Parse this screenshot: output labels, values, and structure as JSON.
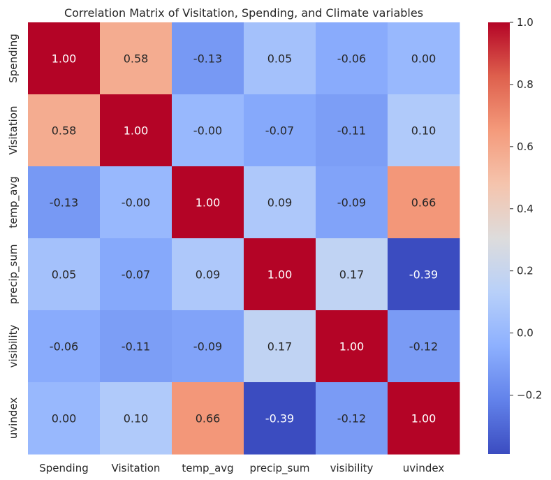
{
  "chart_data": {
    "type": "heatmap",
    "title": "Correlation Matrix of Visitation, Spending, and Climate variables",
    "xlabel": "",
    "ylabel": "",
    "x_labels": [
      "Spending",
      "Visitation",
      "temp_avg",
      "precip_sum",
      "visibility",
      "uvindex"
    ],
    "y_labels": [
      "Spending",
      "Visitation",
      "temp_avg",
      "precip_sum",
      "visibility",
      "uvindex"
    ],
    "values": [
      [
        1.0,
        0.58,
        -0.13,
        0.05,
        -0.06,
        0.0
      ],
      [
        0.58,
        1.0,
        -0.0,
        -0.07,
        -0.11,
        0.1
      ],
      [
        -0.13,
        -0.0,
        1.0,
        0.09,
        -0.09,
        0.66
      ],
      [
        0.05,
        -0.07,
        0.09,
        1.0,
        0.17,
        -0.39
      ],
      [
        -0.06,
        -0.11,
        -0.09,
        0.17,
        1.0,
        -0.12
      ],
      [
        0.0,
        0.1,
        0.66,
        -0.39,
        -0.12,
        1.0
      ]
    ],
    "annotations": [
      [
        "1.00",
        "0.58",
        "-0.13",
        "0.05",
        "-0.06",
        "0.00"
      ],
      [
        "0.58",
        "1.00",
        "-0.00",
        "-0.07",
        "-0.11",
        "0.10"
      ],
      [
        "-0.13",
        "-0.00",
        "1.00",
        "0.09",
        "-0.09",
        "0.66"
      ],
      [
        "0.05",
        "-0.07",
        "0.09",
        "1.00",
        "0.17",
        "-0.39"
      ],
      [
        "-0.06",
        "-0.11",
        "-0.09",
        "0.17",
        "1.00",
        "-0.12"
      ],
      [
        "0.00",
        "0.10",
        "0.66",
        "-0.39",
        "-0.12",
        "1.00"
      ]
    ],
    "colormap": "coolwarm",
    "vmin": -0.39,
    "vmax": 1.0,
    "colorbar": {
      "ticks": [
        -0.2,
        0.0,
        0.2,
        0.4,
        0.6,
        0.8,
        1.0
      ],
      "tick_labels": [
        "−0.2",
        "0.0",
        "0.2",
        "0.4",
        "0.6",
        "0.8",
        "1.0"
      ],
      "position": "right"
    },
    "grid": false,
    "colors": {
      "low": "#3b4cc0",
      "mid": "#dddcdc",
      "high": "#b40426"
    }
  }
}
